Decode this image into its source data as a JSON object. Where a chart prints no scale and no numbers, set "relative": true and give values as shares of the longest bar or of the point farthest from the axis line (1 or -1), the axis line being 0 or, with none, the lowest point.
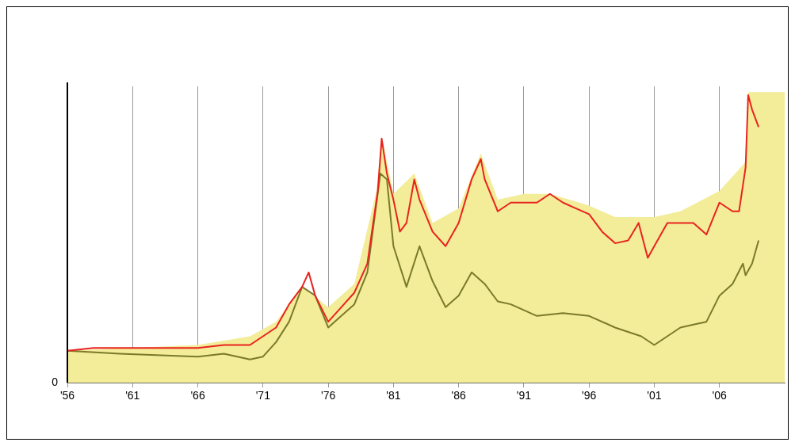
{
  "chart_data": {
    "type": "line",
    "relative": true,
    "xlim": [
      1956,
      2011
    ],
    "xticks": [
      {
        "value": 1956,
        "label": "'56"
      },
      {
        "value": 1961,
        "label": "'61"
      },
      {
        "value": 1966,
        "label": "'66"
      },
      {
        "value": 1971,
        "label": "'71"
      },
      {
        "value": 1976,
        "label": "'76"
      },
      {
        "value": 1981,
        "label": "'81"
      },
      {
        "value": 1986,
        "label": "'86"
      },
      {
        "value": 1991,
        "label": "'91"
      },
      {
        "value": 1996,
        "label": "'96"
      },
      {
        "value": 2001,
        "label": "'01"
      },
      {
        "value": 2006,
        "label": "'06"
      }
    ],
    "grid": "x",
    "legend": false,
    "marker": "none",
    "line_style": "solid",
    "annotations": [
      {
        "text": "0",
        "x": 1956,
        "y": 0
      }
    ],
    "series": [
      {
        "type": "area",
        "color": "#f3ec98",
        "x": [
          1956,
          1966,
          1970,
          1972,
          1974,
          1976,
          1978,
          1979.7,
          1980.1,
          1981,
          1982.6,
          1984,
          1986,
          1987.7,
          1989,
          1991,
          1993,
          1996,
          1998,
          2001,
          2003,
          2006,
          2008,
          2008.2,
          2011
        ],
        "values": [
          0.11,
          0.13,
          0.16,
          0.21,
          0.33,
          0.26,
          0.34,
          0.66,
          0.85,
          0.65,
          0.72,
          0.55,
          0.6,
          0.79,
          0.63,
          0.65,
          0.65,
          0.61,
          0.57,
          0.57,
          0.59,
          0.66,
          0.76,
          1.0,
          1.0
        ]
      },
      {
        "type": "line",
        "color": "#7a7a2a",
        "x": [
          1956,
          1960,
          1966,
          1968,
          1970,
          1971,
          1972,
          1973,
          1974,
          1975,
          1976,
          1977,
          1978,
          1979,
          1980,
          1980.5,
          1981,
          1982,
          1983,
          1984,
          1985,
          1986,
          1987,
          1988,
          1989,
          1990,
          1992,
          1994,
          1996,
          1998,
          2000,
          2001,
          2002,
          2003,
          2004,
          2005,
          2006,
          2007,
          2007.8,
          2008,
          2008.5,
          2009
        ],
        "values": [
          0.11,
          0.1,
          0.09,
          0.1,
          0.08,
          0.09,
          0.14,
          0.21,
          0.33,
          0.3,
          0.19,
          0.23,
          0.27,
          0.38,
          0.72,
          0.7,
          0.47,
          0.33,
          0.47,
          0.35,
          0.26,
          0.3,
          0.38,
          0.34,
          0.28,
          0.27,
          0.23,
          0.24,
          0.23,
          0.19,
          0.16,
          0.13,
          0.16,
          0.19,
          0.2,
          0.21,
          0.3,
          0.34,
          0.41,
          0.37,
          0.41,
          0.49
        ]
      },
      {
        "type": "line",
        "color": "#e8231f",
        "x": [
          1956,
          1958,
          1966,
          1968,
          1970,
          1971,
          1972,
          1973,
          1974,
          1974.5,
          1975,
          1976,
          1977,
          1978,
          1979,
          1979.8,
          1980.1,
          1980.5,
          1981,
          1981.5,
          1982,
          1982.6,
          1983,
          1984,
          1985,
          1986,
          1987,
          1987.7,
          1988,
          1989,
          1990,
          1991,
          1992,
          1993,
          1994,
          1995,
          1996,
          1997,
          1998,
          1999,
          1999.8,
          2000.5,
          2001,
          2002,
          2003,
          2004,
          2005,
          2006,
          2007,
          2007.5,
          2008,
          2008.2,
          2008.5,
          2009
        ],
        "values": [
          0.11,
          0.12,
          0.12,
          0.13,
          0.13,
          0.16,
          0.19,
          0.27,
          0.33,
          0.38,
          0.3,
          0.21,
          0.26,
          0.31,
          0.41,
          0.66,
          0.84,
          0.72,
          0.63,
          0.52,
          0.55,
          0.7,
          0.63,
          0.52,
          0.47,
          0.55,
          0.7,
          0.77,
          0.7,
          0.59,
          0.62,
          0.62,
          0.62,
          0.65,
          0.62,
          0.6,
          0.58,
          0.52,
          0.48,
          0.49,
          0.55,
          0.43,
          0.47,
          0.55,
          0.55,
          0.55,
          0.51,
          0.62,
          0.59,
          0.59,
          0.74,
          0.99,
          0.94,
          0.88
        ]
      }
    ]
  }
}
